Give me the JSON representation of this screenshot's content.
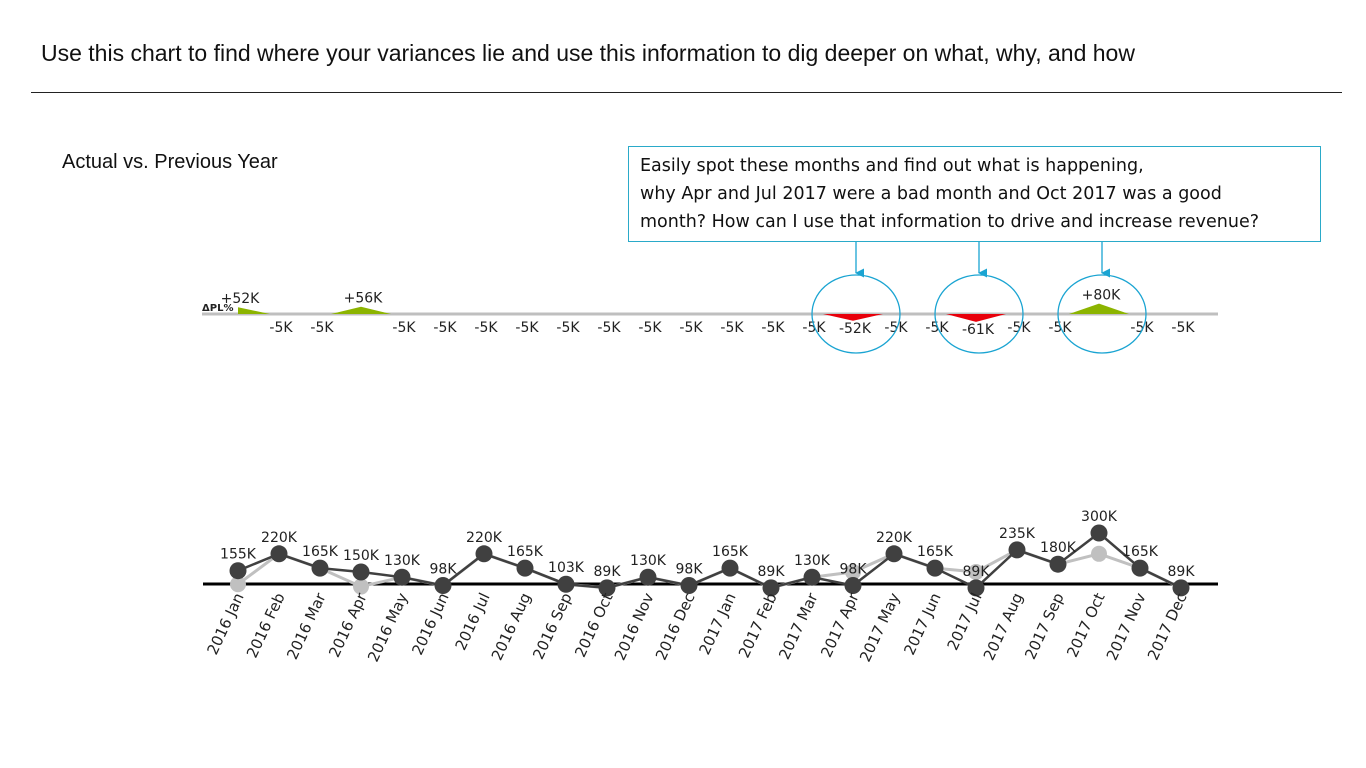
{
  "header": {
    "title": "Use this chart to find where your variances lie and use this information to dig deeper on what, why, and how"
  },
  "subtitle": "Actual vs. Previous Year",
  "callout": {
    "lines": [
      "Easily spot these months and find out what is happening,",
      "why Apr and Jul 2017 were a bad month and Oct 2017 was a good",
      "month? How can I use that information to drive and increase revenue?"
    ]
  },
  "colors": {
    "positive": "#8cb400",
    "negative": "#e8000b",
    "actual": "#404040",
    "previous_year": "#c0c0c0",
    "baseline": "#bfbfbf",
    "highlight": "#1aa4d2"
  },
  "chart_data": {
    "type": "line",
    "variance_axis_label": "ΔPL%",
    "categories": [
      "2016 Jan",
      "2016 Feb",
      "2016 Mar",
      "2016 Apr",
      "2016 May",
      "2016 Jun",
      "2016 Jul",
      "2016 Aug",
      "2016 Sep",
      "2016 Oct",
      "2016 Nov",
      "2016 Dec",
      "2017 Jan",
      "2017 Feb",
      "2017 Mar",
      "2017 Apr",
      "2017 May",
      "2017 Jun",
      "2017 Jul",
      "2017 Aug",
      "2017 Sep",
      "2017 Oct",
      "2017 Nov",
      "2017 Dec"
    ],
    "variance": {
      "values": [
        52,
        -5,
        -5,
        56,
        -5,
        -5,
        -5,
        -5,
        -5,
        -5,
        -5,
        -5,
        -5,
        -5,
        -5,
        -52,
        -5,
        -5,
        -61,
        -5,
        -5,
        80,
        -5,
        -5
      ],
      "labels": [
        "+52K",
        "-5K",
        "-5K",
        "+56K",
        "-5K",
        "-5K",
        "-5K",
        "-5K",
        "-5K",
        "-5K",
        "-5K",
        "-5K",
        "-5K",
        "-5K",
        "-5K",
        "-52K",
        "-5K",
        "-5K",
        "-61K",
        "-5K",
        "-5K",
        "+80K",
        "-5K",
        "-5K"
      ]
    },
    "highlighted_categories": [
      "2017 Apr",
      "2017 Jul",
      "2017 Oct"
    ],
    "series": [
      {
        "values": [
          155,
          220,
          165,
          150,
          130,
          98,
          220,
          165,
          103,
          89,
          130,
          98,
          165,
          89,
          130,
          98,
          220,
          165,
          89,
          235,
          180,
          300,
          165,
          89
        ],
        "labels": [
          "155K",
          "220K",
          "165K",
          "150K",
          "130K",
          "98K",
          "220K",
          "165K",
          "103K",
          "89K",
          "130K",
          "98K",
          "165K",
          "89K",
          "130K",
          "98K",
          "220K",
          "165K",
          "89K",
          "235K",
          "180K",
          "300K",
          "165K",
          "89K"
        ]
      },
      {
        "values": [
          103,
          220,
          165,
          94,
          130,
          98,
          220,
          165,
          103,
          89,
          130,
          98,
          165,
          89,
          130,
          150,
          220,
          165,
          150,
          235,
          180,
          220,
          165,
          89
        ]
      }
    ]
  }
}
